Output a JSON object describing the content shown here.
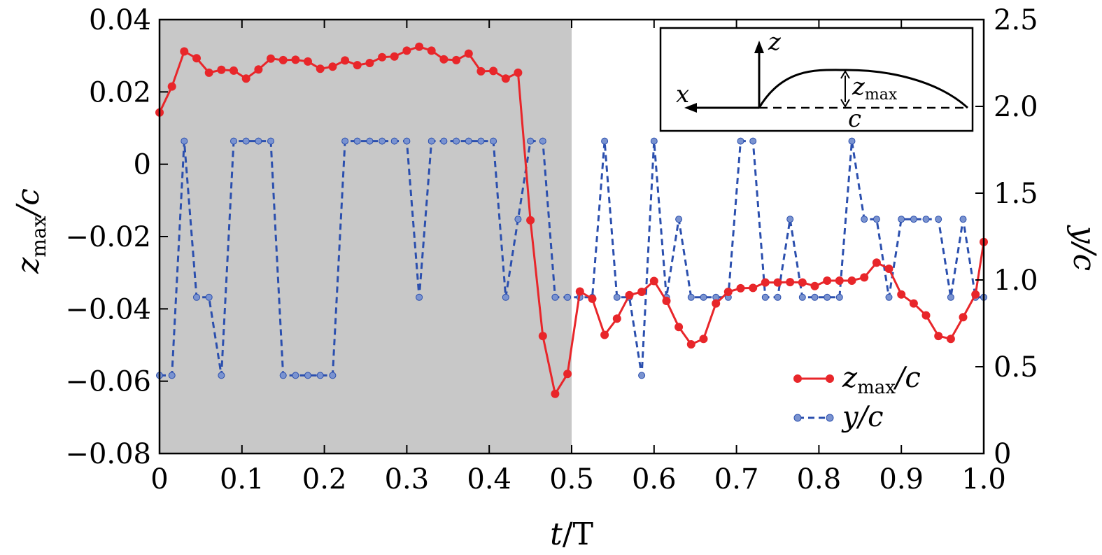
{
  "chart_data": {
    "type": "line",
    "title": "",
    "xlabel": {
      "main": "t",
      "rest": "/T"
    },
    "ylabel_left": {
      "main": "z",
      "sub": "max",
      "rest": "/c"
    },
    "ylabel_right": "y/c",
    "xlim": [
      0,
      1.0
    ],
    "ylim_left": [
      -0.08,
      0.04
    ],
    "ylim_right": [
      0,
      2.5
    ],
    "x_ticks": [
      "0",
      "0.1",
      "0.2",
      "0.3",
      "0.4",
      "0.5",
      "0.6",
      "0.7",
      "0.8",
      "0.9",
      "1.0"
    ],
    "x_tick_values": [
      0,
      0.1,
      0.2,
      0.3,
      0.4,
      0.5,
      0.6,
      0.7,
      0.8,
      0.9,
      1.0
    ],
    "y_left_ticks": [
      "−0.08",
      "−0.06",
      "−0.04",
      "−0.02",
      "0",
      "0.02",
      "0.04"
    ],
    "y_left_tick_values": [
      -0.08,
      -0.06,
      -0.04,
      -0.02,
      0,
      0.02,
      0.04
    ],
    "y_right_ticks": [
      "0",
      "0.5",
      "1.0",
      "1.5",
      "2.0",
      "2.5"
    ],
    "y_right_tick_values": [
      0,
      0.5,
      1.0,
      1.5,
      2.0,
      2.5
    ],
    "shaded_region": {
      "x_start": 0,
      "x_end": 0.5,
      "color": "#c8c8c8"
    },
    "series": [
      {
        "name": "z_max/c",
        "legend": {
          "main": "z",
          "sub": "max",
          "rest": "/c"
        },
        "axis": "left",
        "color": "#e8262a",
        "style": "solid",
        "points": [
          [
            0.0,
            0.0143
          ],
          [
            0.015,
            0.0215
          ],
          [
            0.03,
            0.0312
          ],
          [
            0.045,
            0.0293
          ],
          [
            0.06,
            0.0253
          ],
          [
            0.075,
            0.0261
          ],
          [
            0.09,
            0.0259
          ],
          [
            0.105,
            0.0237
          ],
          [
            0.12,
            0.0262
          ],
          [
            0.135,
            0.0292
          ],
          [
            0.15,
            0.0288
          ],
          [
            0.165,
            0.0289
          ],
          [
            0.18,
            0.0284
          ],
          [
            0.195,
            0.0264
          ],
          [
            0.21,
            0.027
          ],
          [
            0.225,
            0.0287
          ],
          [
            0.24,
            0.0274
          ],
          [
            0.255,
            0.028
          ],
          [
            0.27,
            0.0296
          ],
          [
            0.285,
            0.0298
          ],
          [
            0.3,
            0.0314
          ],
          [
            0.315,
            0.0325
          ],
          [
            0.33,
            0.0314
          ],
          [
            0.345,
            0.029
          ],
          [
            0.36,
            0.0288
          ],
          [
            0.375,
            0.0306
          ],
          [
            0.39,
            0.0257
          ],
          [
            0.405,
            0.0258
          ],
          [
            0.42,
            0.0237
          ],
          [
            0.435,
            0.0253
          ],
          [
            0.45,
            -0.0155
          ],
          [
            0.465,
            -0.0475
          ],
          [
            0.48,
            -0.0635
          ],
          [
            0.495,
            -0.058
          ],
          [
            0.51,
            -0.0352
          ],
          [
            0.525,
            -0.0372
          ],
          [
            0.54,
            -0.0472
          ],
          [
            0.555,
            -0.0427
          ],
          [
            0.57,
            -0.0362
          ],
          [
            0.585,
            -0.0353
          ],
          [
            0.6,
            -0.0323
          ],
          [
            0.615,
            -0.0378
          ],
          [
            0.63,
            -0.045
          ],
          [
            0.645,
            -0.0498
          ],
          [
            0.66,
            -0.0483
          ],
          [
            0.675,
            -0.0385
          ],
          [
            0.69,
            -0.0353
          ],
          [
            0.705,
            -0.0343
          ],
          [
            0.72,
            -0.0342
          ],
          [
            0.735,
            -0.0327
          ],
          [
            0.75,
            -0.0327
          ],
          [
            0.765,
            -0.0326
          ],
          [
            0.78,
            -0.0327
          ],
          [
            0.795,
            -0.0337
          ],
          [
            0.81,
            -0.0322
          ],
          [
            0.825,
            -0.0322
          ],
          [
            0.84,
            -0.0322
          ],
          [
            0.855,
            -0.0313
          ],
          [
            0.87,
            -0.0272
          ],
          [
            0.885,
            -0.0289
          ],
          [
            0.9,
            -0.036
          ],
          [
            0.915,
            -0.0385
          ],
          [
            0.93,
            -0.0418
          ],
          [
            0.945,
            -0.0475
          ],
          [
            0.96,
            -0.0483
          ],
          [
            0.975,
            -0.0423
          ],
          [
            0.99,
            -0.036
          ],
          [
            1.0,
            -0.0215
          ]
        ]
      },
      {
        "name": "y/c",
        "legend": {
          "main": "y",
          "rest": "/c"
        },
        "axis": "right",
        "color": "#2b4fae",
        "marker_color": "#7a93d0",
        "style": "dashed",
        "points": [
          [
            0.0,
            0.45
          ],
          [
            0.015,
            0.45
          ],
          [
            0.03,
            1.8
          ],
          [
            0.045,
            0.9
          ],
          [
            0.06,
            0.9
          ],
          [
            0.075,
            0.45
          ],
          [
            0.09,
            1.8
          ],
          [
            0.105,
            1.8
          ],
          [
            0.12,
            1.8
          ],
          [
            0.135,
            1.8
          ],
          [
            0.15,
            0.45
          ],
          [
            0.165,
            0.45
          ],
          [
            0.18,
            0.45
          ],
          [
            0.195,
            0.45
          ],
          [
            0.21,
            0.45
          ],
          [
            0.225,
            1.8
          ],
          [
            0.24,
            1.8
          ],
          [
            0.255,
            1.8
          ],
          [
            0.27,
            1.8
          ],
          [
            0.285,
            1.8
          ],
          [
            0.3,
            1.8
          ],
          [
            0.315,
            0.9
          ],
          [
            0.33,
            1.8
          ],
          [
            0.345,
            1.8
          ],
          [
            0.36,
            1.8
          ],
          [
            0.375,
            1.8
          ],
          [
            0.39,
            1.8
          ],
          [
            0.405,
            1.8
          ],
          [
            0.42,
            0.9
          ],
          [
            0.435,
            1.35
          ],
          [
            0.45,
            1.8
          ],
          [
            0.465,
            1.8
          ],
          [
            0.48,
            0.9
          ],
          [
            0.495,
            0.9
          ],
          [
            0.51,
            0.9
          ],
          [
            0.525,
            0.9
          ],
          [
            0.54,
            1.8
          ],
          [
            0.555,
            0.9
          ],
          [
            0.57,
            0.9
          ],
          [
            0.585,
            0.45
          ],
          [
            0.6,
            1.8
          ],
          [
            0.615,
            0.9
          ],
          [
            0.63,
            1.35
          ],
          [
            0.645,
            0.9
          ],
          [
            0.66,
            0.9
          ],
          [
            0.675,
            0.9
          ],
          [
            0.69,
            0.9
          ],
          [
            0.705,
            1.8
          ],
          [
            0.72,
            1.8
          ],
          [
            0.735,
            0.9
          ],
          [
            0.75,
            0.9
          ],
          [
            0.765,
            1.35
          ],
          [
            0.78,
            0.9
          ],
          [
            0.795,
            0.9
          ],
          [
            0.81,
            0.9
          ],
          [
            0.825,
            0.9
          ],
          [
            0.84,
            1.8
          ],
          [
            0.855,
            1.35
          ],
          [
            0.87,
            1.35
          ],
          [
            0.885,
            0.9
          ],
          [
            0.9,
            1.35
          ],
          [
            0.915,
            1.35
          ],
          [
            0.93,
            1.35
          ],
          [
            0.945,
            1.35
          ],
          [
            0.96,
            0.9
          ],
          [
            0.975,
            1.35
          ],
          [
            0.99,
            0.9
          ],
          [
            1.0,
            0.9
          ]
        ]
      }
    ],
    "legend_position": "lower-right",
    "inset": {
      "description": "camber sketch",
      "labels": {
        "x_axis": "x",
        "z_axis": "z",
        "zmax_main": "z",
        "zmax_sub": "max",
        "chord": "c"
      }
    }
  }
}
